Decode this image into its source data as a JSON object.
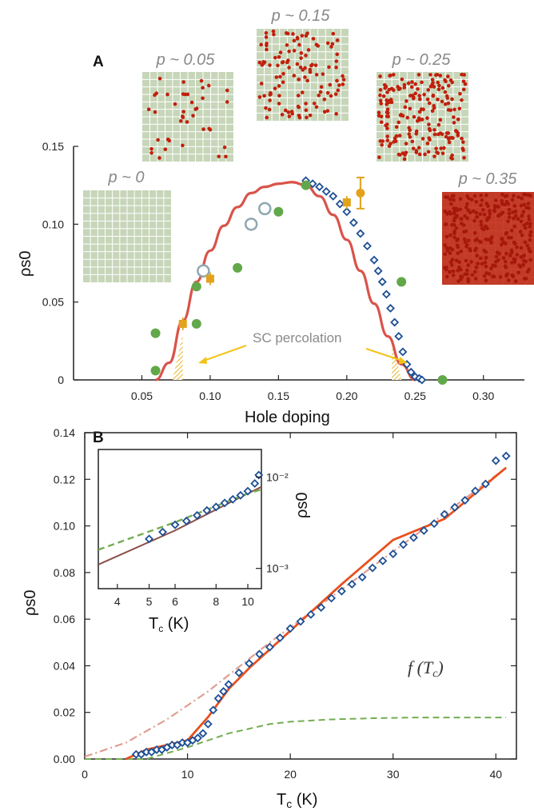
{
  "colors": {
    "red_curve": "#d9534a",
    "orange_fit": "#e8501e",
    "blue_marker": "#1d4f94",
    "green_dot": "#62a84a",
    "gold_marker": "#e2a21c",
    "open_circle": "#8fa7b0",
    "tile_bg": "#c7d6b9",
    "tile_dot": "#c0200c",
    "green_dash": "#74ad52",
    "pink_dashdot": "#df9e92",
    "brown_line": "#8a5048",
    "hatch": "#e8b52a",
    "arrow": "#f2c418"
  },
  "chart_data": [
    {
      "panel": "A",
      "type": "scatter",
      "xlabel": "Hole doping",
      "ylabel": "ρs0",
      "xlim": [
        0,
        0.33
      ],
      "ylim": [
        0,
        0.15
      ],
      "xticks": [
        "0.05",
        "0.10",
        "0.15",
        "0.20",
        "0.25",
        "0.30"
      ],
      "yticks": [
        "0",
        "0.05",
        "0.10",
        "0.15"
      ],
      "annotation": "SC percolation",
      "insets": [
        {
          "label": "p ~ 0",
          "density": 0
        },
        {
          "label": "p ~ 0.05",
          "density": 0.05
        },
        {
          "label": "p ~ 0.15",
          "density": 0.15
        },
        {
          "label": "p ~ 0.25",
          "density": 0.25
        },
        {
          "label": "p ~ 0.35",
          "density": 0.35
        }
      ],
      "series": [
        {
          "marker": "line",
          "x": [
            0.06,
            0.07,
            0.08,
            0.09,
            0.1,
            0.11,
            0.12,
            0.13,
            0.14,
            0.15,
            0.16,
            0.17,
            0.18,
            0.19,
            0.2,
            0.21,
            0.22,
            0.23,
            0.24,
            0.25
          ],
          "y": [
            0.0,
            0.011,
            0.038,
            0.063,
            0.083,
            0.099,
            0.111,
            0.12,
            0.124,
            0.126,
            0.127,
            0.125,
            0.118,
            0.106,
            0.09,
            0.07,
            0.049,
            0.028,
            0.01,
            0.0
          ]
        },
        {
          "marker": "green-dot",
          "x": [
            0.06,
            0.06,
            0.09,
            0.09,
            0.12,
            0.15,
            0.17,
            0.24,
            0.27
          ],
          "y": [
            0.006,
            0.03,
            0.06,
            0.036,
            0.072,
            0.108,
            0.125,
            0.063,
            0.0
          ]
        },
        {
          "marker": "open-circle",
          "x": [
            0.095,
            0.13,
            0.14
          ],
          "y": [
            0.07,
            0.1,
            0.11
          ]
        },
        {
          "marker": "gold-square",
          "x": [
            0.08,
            0.1,
            0.2
          ],
          "y": [
            0.036,
            0.065,
            0.114
          ]
        },
        {
          "marker": "gold-errorbar",
          "x": [
            0.21
          ],
          "y": [
            0.12
          ],
          "yerr": 0.01
        },
        {
          "marker": "blue-diamond",
          "x": [
            0.17,
            0.175,
            0.18,
            0.185,
            0.19,
            0.195,
            0.2,
            0.205,
            0.21,
            0.215,
            0.22,
            0.223,
            0.226,
            0.229,
            0.232,
            0.235,
            0.238,
            0.241,
            0.244,
            0.247,
            0.25,
            0.253,
            0.255
          ],
          "y": [
            0.128,
            0.126,
            0.124,
            0.121,
            0.118,
            0.113,
            0.108,
            0.101,
            0.094,
            0.086,
            0.077,
            0.07,
            0.063,
            0.055,
            0.046,
            0.037,
            0.028,
            0.018,
            0.01,
            0.005,
            0.002,
            0.001,
            0.0
          ]
        }
      ]
    },
    {
      "panel": "B",
      "type": "scatter",
      "xlabel": "Tc (K)",
      "ylabel": "ρs0",
      "xlim": [
        0,
        42
      ],
      "ylim": [
        0,
        0.14
      ],
      "xticks": [
        "0",
        "10",
        "20",
        "30",
        "40"
      ],
      "yticks": [
        "0.00",
        "0.02",
        "0.04",
        "0.06",
        "0.08",
        "0.10",
        "0.12",
        "0.14"
      ],
      "annotation": "f(Tc)",
      "series": [
        {
          "marker": "blue-diamond",
          "x": [
            5,
            5.5,
            6,
            6.5,
            7,
            7.5,
            8,
            8.5,
            9,
            9.5,
            10,
            10.5,
            11,
            11.5,
            12,
            12.5,
            13,
            13.5,
            14,
            15,
            16,
            17,
            18,
            19,
            20,
            21,
            22,
            23,
            24,
            25,
            26,
            27,
            28,
            29,
            30,
            31,
            32,
            33,
            34,
            35,
            36,
            37,
            38,
            39,
            40,
            41
          ],
          "y": [
            0.002,
            0.002,
            0.003,
            0.003,
            0.004,
            0.004,
            0.005,
            0.006,
            0.006,
            0.007,
            0.007,
            0.008,
            0.009,
            0.011,
            0.015,
            0.021,
            0.026,
            0.029,
            0.032,
            0.037,
            0.041,
            0.045,
            0.048,
            0.052,
            0.056,
            0.059,
            0.062,
            0.065,
            0.069,
            0.072,
            0.075,
            0.078,
            0.082,
            0.085,
            0.088,
            0.092,
            0.095,
            0.098,
            0.101,
            0.105,
            0.108,
            0.111,
            0.115,
            0.118,
            0.128,
            0.13
          ]
        },
        {
          "marker": "orange-fit",
          "x": [
            4,
            6,
            8,
            10,
            12,
            14,
            16,
            20,
            25,
            30,
            35,
            41
          ],
          "y": [
            0,
            0.004,
            0.006,
            0.008,
            0.018,
            0.03,
            0.039,
            0.055,
            0.075,
            0.094,
            0.103,
            0.125
          ]
        },
        {
          "marker": "pink-dashdot",
          "x": [
            0,
            4,
            8,
            12,
            16,
            18,
            22,
            26,
            30,
            34,
            38,
            41
          ],
          "y": [
            0.001,
            0.007,
            0.017,
            0.029,
            0.043,
            0.05,
            0.063,
            0.076,
            0.089,
            0.102,
            0.115,
            0.125
          ]
        },
        {
          "marker": "green-dash",
          "x": [
            0,
            6,
            10,
            12,
            14,
            16,
            18,
            20,
            24,
            28,
            32,
            36,
            41
          ],
          "y": [
            0,
            0.0,
            0.005,
            0.008,
            0.011,
            0.013,
            0.015,
            0.016,
            0.017,
            0.0175,
            0.0178,
            0.0178,
            0.0178
          ]
        }
      ]
    },
    {
      "panel": "B-inset",
      "type": "scatter",
      "xlabel": "Tc (K)",
      "ylabel": "ρs0",
      "xscale": "log",
      "yscale": "log",
      "xlim": [
        3.5,
        11
      ],
      "ylim": [
        0.0006,
        0.02
      ],
      "xticks": [
        "4",
        "5",
        "6",
        "8",
        "10"
      ],
      "yticks": [
        "10⁻³",
        "10⁻²"
      ],
      "series": [
        {
          "marker": "blue-diamond",
          "x": [
            5,
            5.5,
            6,
            6.5,
            7,
            7.5,
            8,
            8.5,
            9,
            9.5,
            10,
            10.5,
            10.8
          ],
          "y": [
            0.0021,
            0.0025,
            0.003,
            0.0033,
            0.0038,
            0.0043,
            0.0047,
            0.0052,
            0.0057,
            0.0063,
            0.007,
            0.0085,
            0.0105
          ]
        },
        {
          "marker": "green-dash",
          "x": [
            3.5,
            6,
            8,
            10,
            11
          ],
          "y": [
            0.0016,
            0.0032,
            0.0048,
            0.0066,
            0.0073
          ]
        },
        {
          "marker": "brown-line",
          "x": [
            3.5,
            6,
            8,
            10,
            11
          ],
          "y": [
            0.0011,
            0.0026,
            0.0044,
            0.0066,
            0.0078
          ]
        }
      ]
    }
  ]
}
